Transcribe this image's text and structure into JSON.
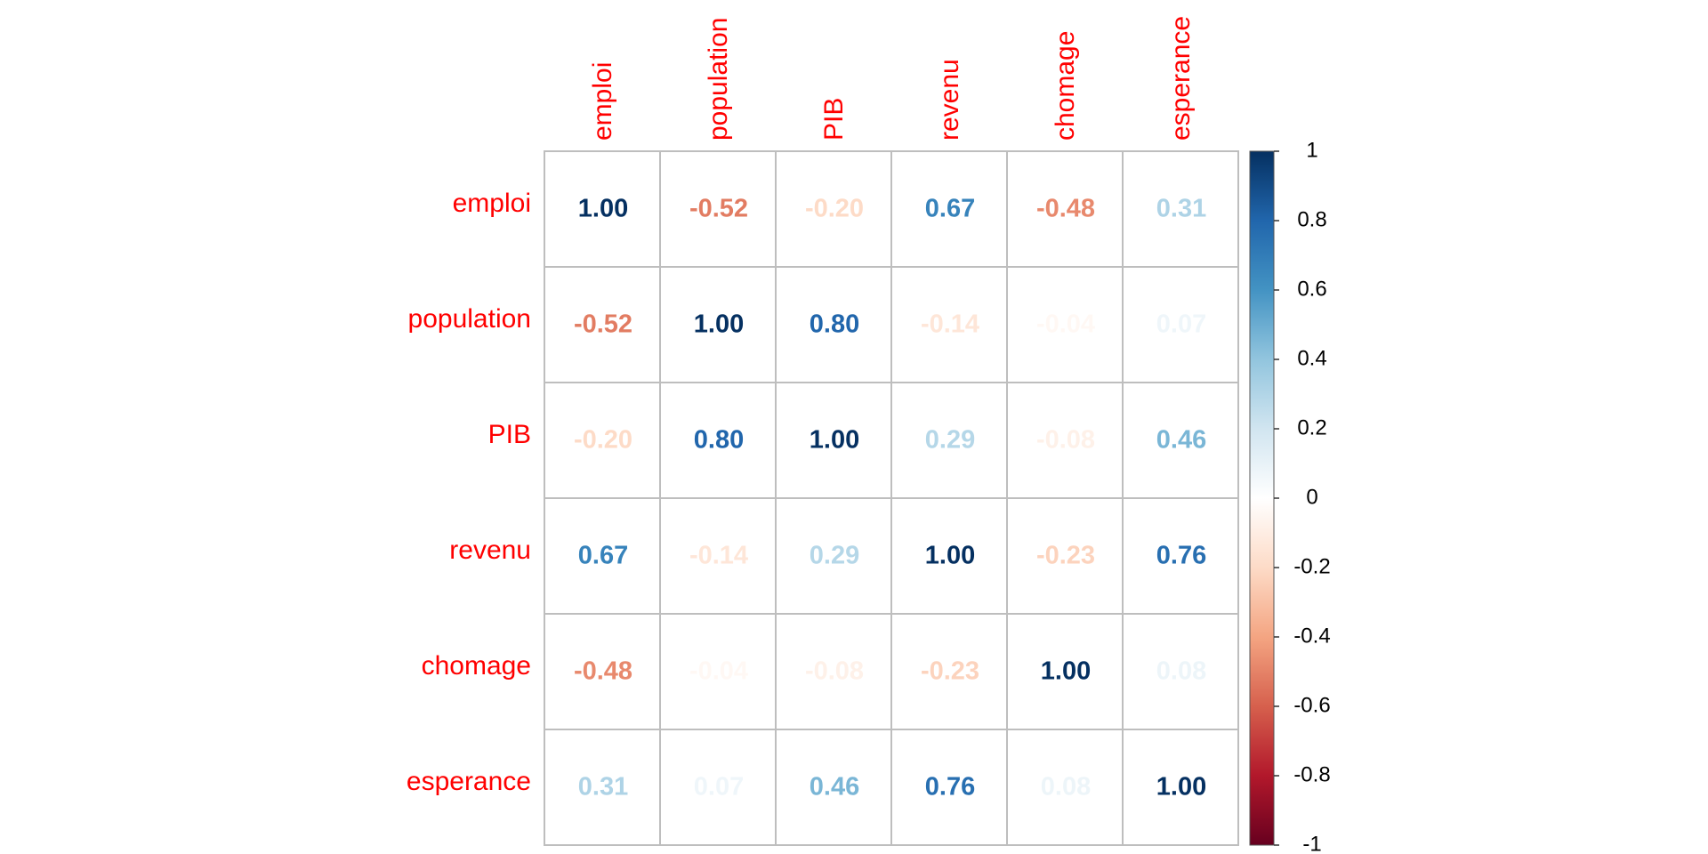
{
  "chart_data": {
    "type": "heatmap",
    "subtype": "correlation-matrix",
    "title": "",
    "variables": [
      "emploi",
      "population",
      "PIB",
      "revenu",
      "chomage",
      "esperance"
    ],
    "matrix": [
      [
        1.0,
        -0.52,
        -0.2,
        0.67,
        -0.48,
        0.31
      ],
      [
        -0.52,
        1.0,
        0.8,
        -0.14,
        -0.04,
        0.07
      ],
      [
        -0.2,
        0.8,
        1.0,
        0.29,
        -0.08,
        0.46
      ],
      [
        0.67,
        -0.14,
        0.29,
        1.0,
        -0.23,
        0.76
      ],
      [
        -0.48,
        -0.04,
        -0.08,
        -0.23,
        1.0,
        0.08
      ],
      [
        0.31,
        0.07,
        0.46,
        0.76,
        0.08,
        1.0
      ]
    ],
    "value_format": "2 decimals",
    "legend": {
      "position": "right",
      "range": [
        -1,
        1
      ],
      "ticks": [
        1,
        0.8,
        0.6,
        0.4,
        0.2,
        0,
        -0.2,
        -0.4,
        -0.6,
        -0.8,
        -1
      ],
      "tick_labels": [
        "1",
        "0.8",
        "0.6",
        "0.4",
        "0.2",
        "0",
        "-0.2",
        "-0.4",
        "-0.6",
        "-0.8",
        "-1"
      ]
    },
    "colors": {
      "label": "#ff0000",
      "grid": "#bebebe",
      "palette": [
        "#67001f",
        "#b2182b",
        "#d6604d",
        "#f4a582",
        "#fddbc7",
        "#ffffff",
        "#d1e5f0",
        "#92c5de",
        "#4393c3",
        "#2166ac",
        "#053061"
      ]
    }
  }
}
